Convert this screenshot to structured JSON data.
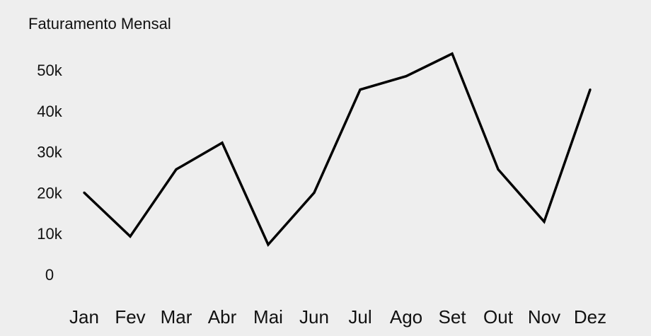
{
  "chart_data": {
    "type": "line",
    "title": "Faturamento Mensal",
    "xlabel": "",
    "ylabel": "",
    "categories": [
      "Jan",
      "Fev",
      "Mar",
      "Abr",
      "Mai",
      "Jun",
      "Jul",
      "Ago",
      "Set",
      "Out",
      "Nov",
      "Dez"
    ],
    "series": [
      {
        "values": [
          20000,
          9300,
          25700,
          32200,
          7300,
          20000,
          45200,
          48500,
          54000,
          25700,
          12900,
          45200
        ],
        "color": "#000000"
      }
    ],
    "y_ticks": [
      {
        "value": 0,
        "label": "0"
      },
      {
        "value": 10000,
        "label": "10k"
      },
      {
        "value": 20000,
        "label": "20k"
      },
      {
        "value": 30000,
        "label": "30k"
      },
      {
        "value": 40000,
        "label": "40k"
      },
      {
        "value": 50000,
        "label": "50k"
      }
    ],
    "ylim": [
      0,
      50000
    ],
    "grid": false,
    "legend": "none",
    "background": "#eeeeee"
  }
}
